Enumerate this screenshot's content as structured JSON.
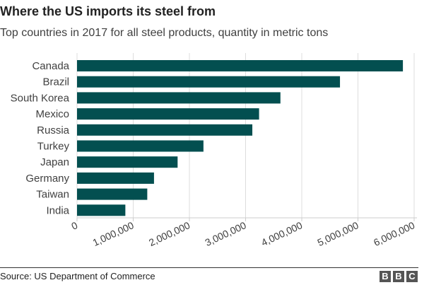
{
  "title": "Where the US imports its steel from",
  "subtitle": "Top countries in 2017 for all steel products, quantity in metric tons",
  "source": "Source: US Department of Commerce",
  "logo": [
    "B",
    "B",
    "C"
  ],
  "colors": {
    "bar": "#034f50",
    "grid": "#dddddd"
  },
  "chart_data": {
    "type": "bar",
    "orientation": "horizontal",
    "title": "Where the US imports its steel from",
    "subtitle": "Top countries in 2017 for all steel products, quantity in metric tons",
    "categories": [
      "Canada",
      "Brazil",
      "South Korea",
      "Mexico",
      "Russia",
      "Turkey",
      "Japan",
      "Germany",
      "Taiwan",
      "India"
    ],
    "values": [
      5800000,
      4680000,
      3620000,
      3240000,
      3120000,
      2250000,
      1790000,
      1370000,
      1250000,
      860000
    ],
    "xlim": [
      0,
      6000000
    ],
    "xticks": [
      0,
      1000000,
      2000000,
      3000000,
      4000000,
      5000000,
      6000000
    ],
    "xtick_labels": [
      "0",
      "1,000,000",
      "2,000,000",
      "3,000,000",
      "4,000,000",
      "5,000,000",
      "6,000,000"
    ],
    "xlabel": "",
    "ylabel": "",
    "grid": "vertical",
    "legend": "none"
  }
}
